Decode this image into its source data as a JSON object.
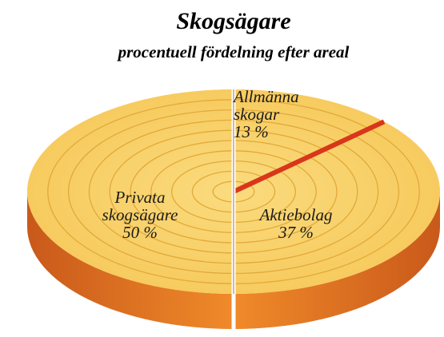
{
  "chart_data": {
    "type": "pie",
    "title": "Skogsägare",
    "subtitle": "procentuell fördelning efter areal",
    "categories": [
      "Allmänna skogar",
      "Aktiebolag",
      "Privata skogsägare"
    ],
    "values": [
      13,
      37,
      50
    ],
    "value_labels": [
      "13 %",
      "37 %",
      "50 %"
    ],
    "colors": [
      "#f7cf63",
      "#f7cf63",
      "#f7cf63"
    ]
  }
}
